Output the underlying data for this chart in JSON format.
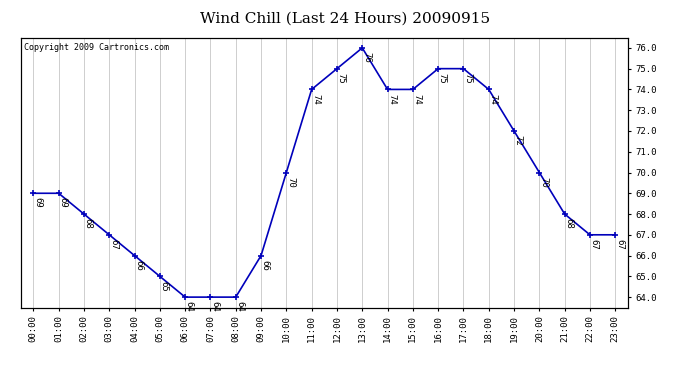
{
  "title": "Wind Chill (Last 24 Hours) 20090915",
  "copyright_text": "Copyright 2009 Cartronics.com",
  "hours": [
    0,
    1,
    2,
    3,
    4,
    5,
    6,
    7,
    8,
    9,
    10,
    11,
    12,
    13,
    14,
    15,
    16,
    17,
    18,
    19,
    20,
    21,
    22,
    23
  ],
  "values": [
    69,
    69,
    68,
    67,
    66,
    65,
    64,
    64,
    64,
    66,
    70,
    74,
    75,
    76,
    74,
    74,
    75,
    75,
    74,
    72,
    70,
    68,
    67,
    67
  ],
  "xlabels": [
    "00:00",
    "01:00",
    "02:00",
    "03:00",
    "04:00",
    "05:00",
    "06:00",
    "07:00",
    "08:00",
    "09:00",
    "10:00",
    "11:00",
    "12:00",
    "13:00",
    "14:00",
    "15:00",
    "16:00",
    "17:00",
    "18:00",
    "19:00",
    "20:00",
    "21:00",
    "22:00",
    "23:00"
  ],
  "ylim": [
    63.5,
    76.5
  ],
  "yticks": [
    64.0,
    65.0,
    66.0,
    67.0,
    68.0,
    69.0,
    70.0,
    71.0,
    72.0,
    73.0,
    74.0,
    75.0,
    76.0
  ],
  "line_color": "#0000bb",
  "marker_color": "#0000bb",
  "grid_color": "#bbbbbb",
  "bg_color": "#ffffff",
  "title_fontsize": 11,
  "label_fontsize": 6.5,
  "annotation_fontsize": 6.5,
  "copyright_fontsize": 6
}
